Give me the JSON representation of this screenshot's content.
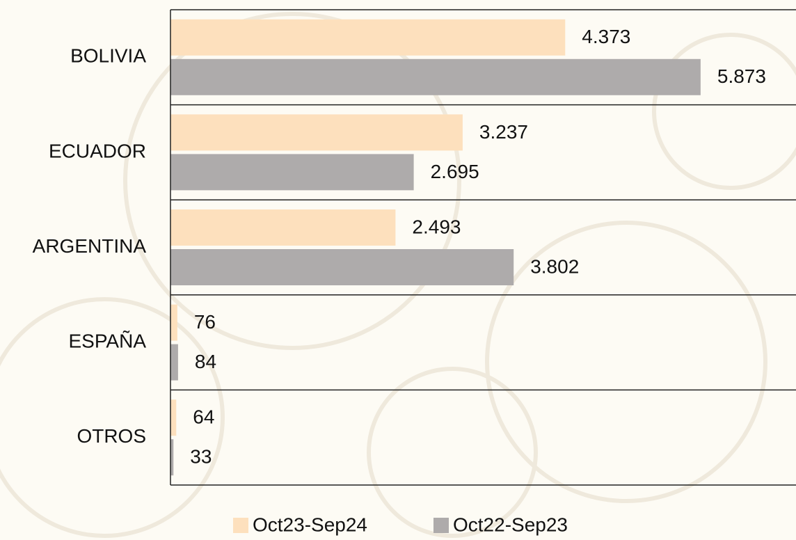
{
  "chart_data": {
    "type": "bar",
    "orientation": "horizontal",
    "categories": [
      "BOLIVIA",
      "ECUADOR",
      "ARGENTINA",
      "ESPAÑA",
      "OTROS"
    ],
    "series": [
      {
        "name": "Oct23-Sep24",
        "color": "#fde0bd",
        "values": [
          4373,
          3237,
          2493,
          76,
          64
        ],
        "value_labels": [
          "4.373",
          "3.237",
          "2.493",
          "76",
          "64"
        ]
      },
      {
        "name": "Oct22-Sep23",
        "color": "#aeabab",
        "values": [
          5873,
          2695,
          3802,
          84,
          33
        ],
        "value_labels": [
          "5.873",
          "2.695",
          "3.802",
          "84",
          "33"
        ]
      }
    ],
    "xlim": [
      0,
      6930
    ],
    "legend": "bottom"
  }
}
